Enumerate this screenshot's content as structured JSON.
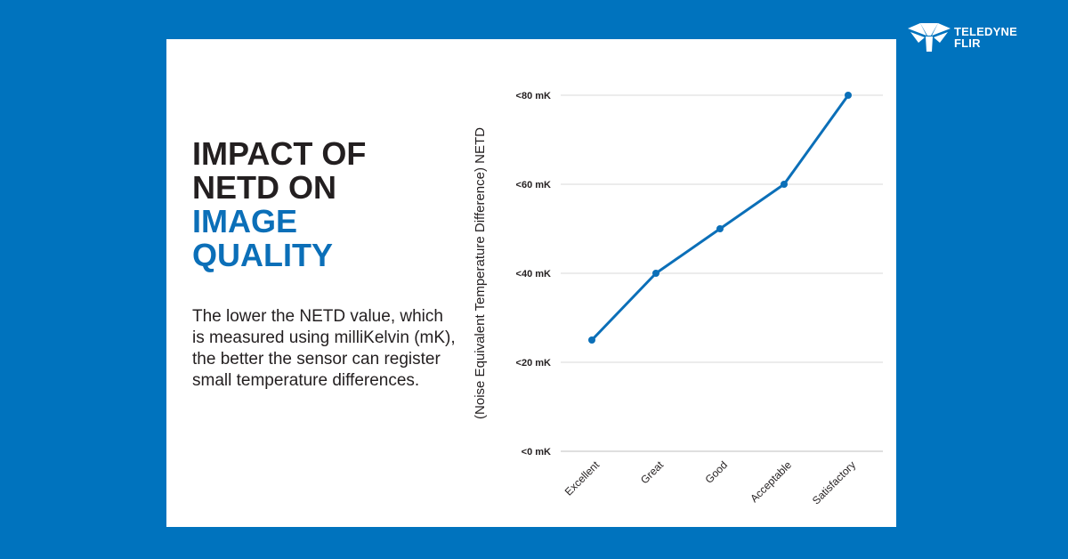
{
  "brand": {
    "line1": "TELEDYNE",
    "line2": "FLIR",
    "logo_icon": "teledyne-flir-logo-icon"
  },
  "headline": {
    "dark_lines": [
      "IMPACT OF",
      "NETD ON"
    ],
    "blue_lines": [
      "IMAGE",
      "QUALITY"
    ]
  },
  "body_text": "The lower the NETD value, which is measured using milliKelvin (mK), the better the sensor can register small temperature differences.",
  "colors": {
    "background": "#0073be",
    "card": "#ffffff",
    "accent": "#0b6fb8",
    "text": "#231f20",
    "grid": "#d9d9d9"
  },
  "chart_data": {
    "type": "line",
    "title": "",
    "xlabel": "",
    "ylabel": "(Noise Equivalent Temperature Difference) NETD",
    "categories": [
      "Excellent",
      "Great",
      "Good",
      "Acceptable",
      "Satisfactory"
    ],
    "values": [
      25,
      40,
      50,
      60,
      80
    ],
    "ylim": [
      0,
      80
    ],
    "yticks": [
      0,
      20,
      40,
      60,
      80
    ],
    "ytick_labels": [
      "<0 mK",
      "<20 mK",
      "<40 mK",
      "<60 mK",
      "<80 mK"
    ],
    "grid": true,
    "series_color": "#0b6fb8"
  }
}
